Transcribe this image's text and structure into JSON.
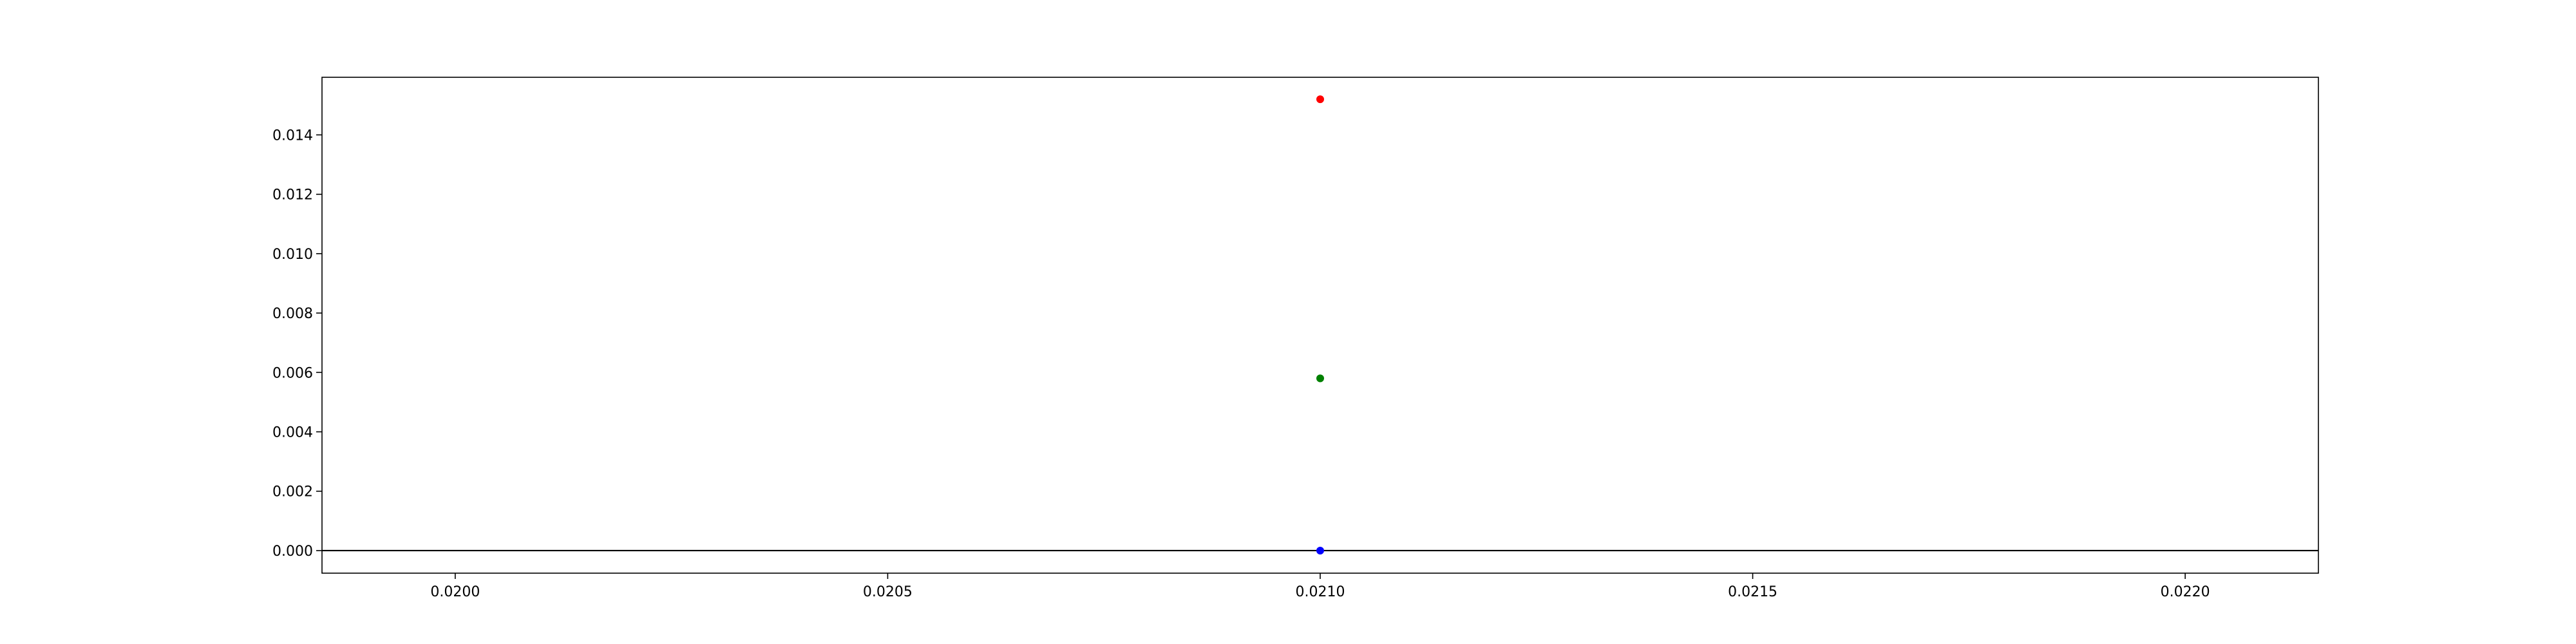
{
  "chart_data": {
    "type": "scatter",
    "title": "",
    "xlabel": "",
    "ylabel": "",
    "xlim": [
      0.019846,
      0.022154
    ],
    "ylim": [
      -0.00076,
      0.01594
    ],
    "x_ticks": [
      {
        "value": 0.02,
        "label": "0.0200"
      },
      {
        "value": 0.0205,
        "label": "0.0205"
      },
      {
        "value": 0.021,
        "label": "0.0210"
      },
      {
        "value": 0.0215,
        "label": "0.0215"
      },
      {
        "value": 0.022,
        "label": "0.0220"
      }
    ],
    "y_ticks": [
      {
        "value": 0.0,
        "label": "0.000"
      },
      {
        "value": 0.002,
        "label": "0.002"
      },
      {
        "value": 0.004,
        "label": "0.004"
      },
      {
        "value": 0.006,
        "label": "0.006"
      },
      {
        "value": 0.008,
        "label": "0.008"
      },
      {
        "value": 0.01,
        "label": "0.010"
      },
      {
        "value": 0.012,
        "label": "0.012"
      },
      {
        "value": 0.014,
        "label": "0.014"
      }
    ],
    "hline": {
      "y": 0.0,
      "color": "#000000"
    },
    "grid": false,
    "points": [
      {
        "x": 0.021,
        "y": 0.0152,
        "color": "#ff0000"
      },
      {
        "x": 0.021,
        "y": 0.0058,
        "color": "#008000"
      },
      {
        "x": 0.021,
        "y": 0.0,
        "color": "#0000ff"
      }
    ]
  }
}
